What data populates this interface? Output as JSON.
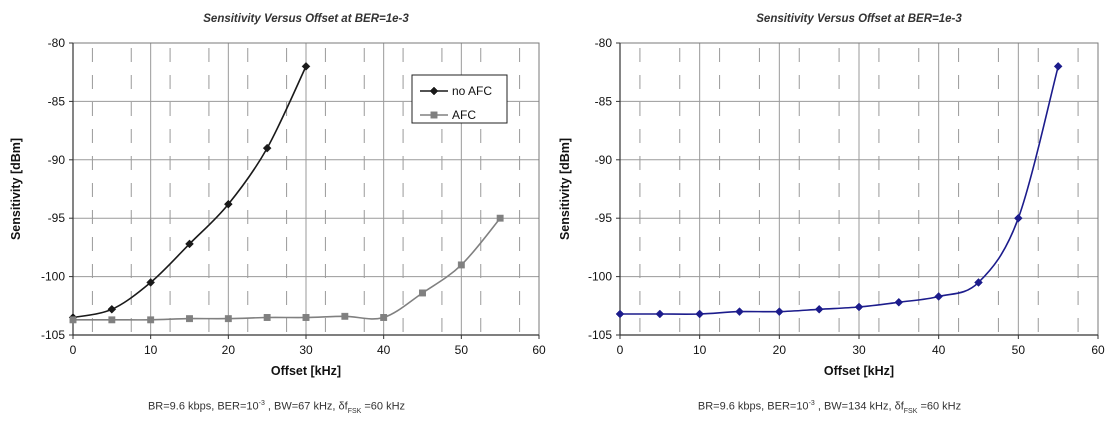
{
  "chart_data": [
    {
      "type": "line",
      "title": "Sensitivity Versus Offset at BER=1e-3",
      "xlabel": "Offset [kHz]",
      "ylabel": "Sensitivity [dBm]",
      "xlim": [
        0,
        60
      ],
      "ylim": [
        -105,
        -80
      ],
      "xticks": [
        0,
        10,
        20,
        30,
        40,
        50,
        60
      ],
      "yticks": [
        -105,
        -100,
        -95,
        -90,
        -85,
        -80
      ],
      "grid": true,
      "legend": "top-right",
      "series": [
        {
          "name": "no AFC",
          "color": "#1a1a1a",
          "marker": "diamond",
          "x": [
            0,
            5,
            10,
            15,
            20,
            25,
            30
          ],
          "y": [
            -103.5,
            -102.8,
            -100.5,
            -97.2,
            -93.8,
            -89.0,
            -82.0
          ]
        },
        {
          "name": "AFC",
          "color": "#808080",
          "marker": "square",
          "x": [
            0,
            5,
            10,
            15,
            20,
            25,
            30,
            35,
            40,
            45,
            50,
            55
          ],
          "y": [
            -103.7,
            -103.7,
            -103.7,
            -103.6,
            -103.6,
            -103.5,
            -103.5,
            -103.4,
            -103.5,
            -101.4,
            -99.0,
            -95.0
          ]
        }
      ],
      "caption": {
        "pre": "BR=9.6 kbps, BER=10",
        "sup": "-3",
        "mid": " , BW=67 kHz, δf",
        "sub": "FSK",
        "post": " =60 kHz"
      }
    },
    {
      "type": "line",
      "title": "Sensitivity Versus Offset at BER=1e-3",
      "xlabel": "Offset [kHz]",
      "ylabel": "Sensitivity [dBm]",
      "xlim": [
        0,
        60
      ],
      "ylim": [
        -105,
        -80
      ],
      "xticks": [
        0,
        10,
        20,
        30,
        40,
        50,
        60
      ],
      "yticks": [
        -105,
        -100,
        -95,
        -90,
        -85,
        -80
      ],
      "grid": true,
      "legend": "none",
      "series": [
        {
          "color": "#1c1c8c",
          "marker": "diamond",
          "x": [
            0,
            5,
            10,
            15,
            20,
            25,
            30,
            35,
            40,
            45,
            50,
            55
          ],
          "y": [
            -103.2,
            -103.2,
            -103.2,
            -103.0,
            -103.0,
            -102.8,
            -102.6,
            -102.2,
            -101.7,
            -100.5,
            -95.0,
            -82.0
          ]
        }
      ],
      "caption": {
        "pre": "BR=9.6 kbps, BER=10",
        "sup": "-3",
        "mid": " , BW=134 kHz, δf",
        "sub": "FSK",
        "post": " =60 kHz"
      }
    }
  ]
}
